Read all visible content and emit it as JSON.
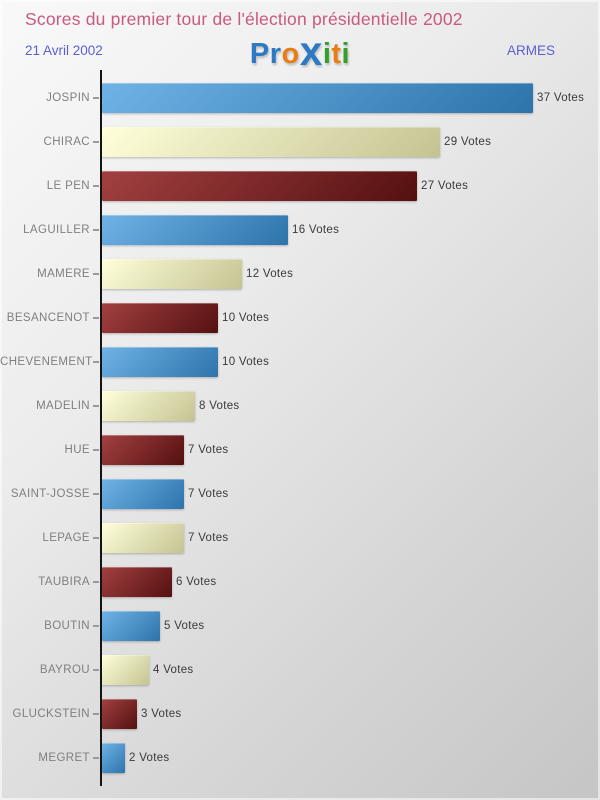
{
  "page": {
    "title": "Scores du premier tour de l'élection présidentielle 2002",
    "date": "21 Avril 2002",
    "place": "ARMES"
  },
  "logo": {
    "name": "Proxiti",
    "letters": [
      {
        "ch": "P",
        "color": "#2e79c3",
        "big": false
      },
      {
        "ch": "r",
        "color": "#2e79c3",
        "big": false
      },
      {
        "ch": "o",
        "color": "#e87d15",
        "big": false
      },
      {
        "ch": "x",
        "color": "#2e79c3",
        "big": true
      },
      {
        "ch": "i",
        "color": "#33a02c",
        "big": false
      },
      {
        "ch": "t",
        "color": "#e87d15",
        "big": false
      },
      {
        "ch": "i",
        "color": "#33a02c",
        "big": false
      }
    ]
  },
  "chart_data": {
    "type": "bar",
    "orientation": "horizontal",
    "title": "Scores du premier tour de l'élection présidentielle 2002",
    "categories": [
      "JOSPIN",
      "CHIRAC",
      "LE PEN",
      "LAGUILLER",
      "MAMERE",
      "BESANCENOT",
      "CHEVENEMENT",
      "MADELIN",
      "HUE",
      "SAINT-JOSSE",
      "LEPAGE",
      "TAUBIRA",
      "BOUTIN",
      "BAYROU",
      "GLUCKSTEIN",
      "MEGRET"
    ],
    "values": [
      37,
      29,
      27,
      16,
      12,
      10,
      10,
      8,
      7,
      7,
      7,
      6,
      5,
      4,
      3,
      2
    ],
    "value_suffix": " Votes",
    "bar_color_keys": [
      "blue",
      "cream",
      "darkred",
      "blue",
      "cream",
      "darkred",
      "blue",
      "cream",
      "darkred",
      "blue",
      "cream",
      "darkred",
      "blue",
      "cream",
      "darkred",
      "blue"
    ],
    "xlim": [
      0,
      37
    ],
    "grid": false,
    "legend": false
  },
  "palette": {
    "blue_start": "#6fb3e6",
    "blue_end": "#2d74ac",
    "cream_start": "#ffffda",
    "cream_end": "#c3c392",
    "darkred_start": "#a24041",
    "darkred_end": "#551010",
    "title_color": "#c9597e",
    "subtitle_color": "#5b5fd3",
    "label_color": "#7f7f7f",
    "value_color": "#3a3a3a",
    "axis_color": "#141414"
  }
}
